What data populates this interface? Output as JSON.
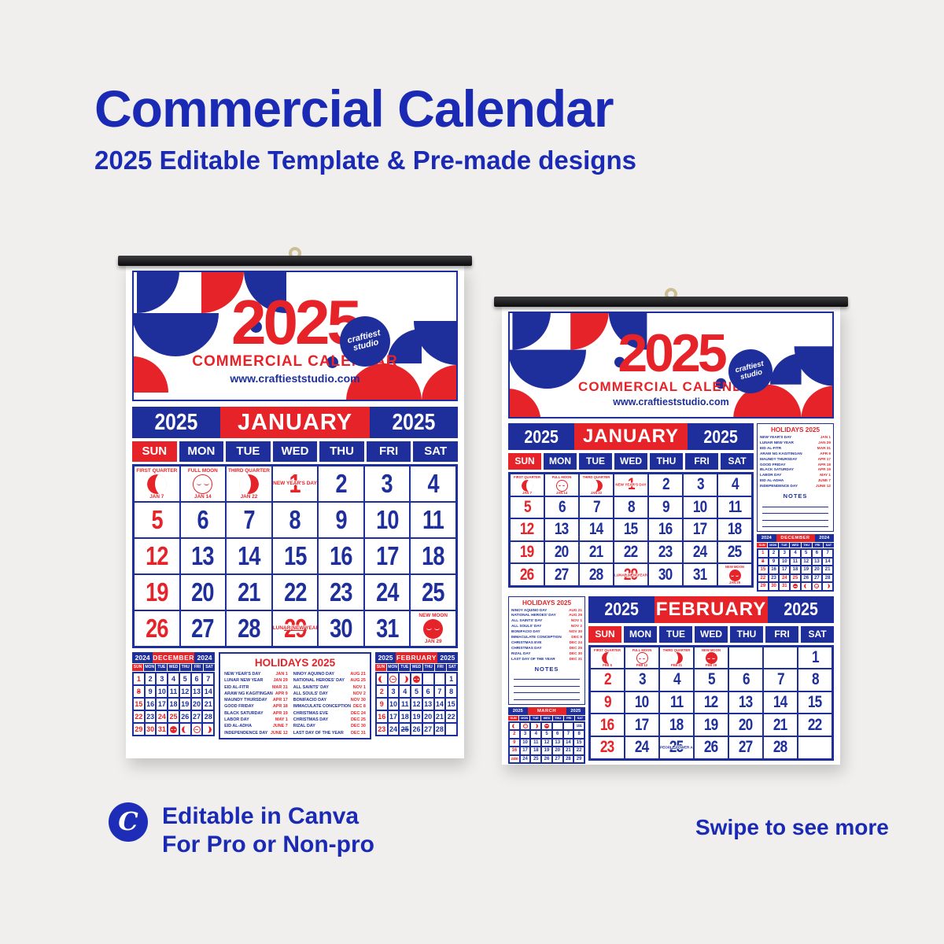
{
  "page": {
    "title": "Commercial Calendar",
    "subtitle": "2025 Editable Template & Pre-made designs",
    "swipe": "Swipe to see more",
    "canva_logo": "C",
    "canva_line1": "Editable in Canva",
    "canva_line2": "For Pro or Non-pro"
  },
  "colors": {
    "blue": "#1e2f9b",
    "red": "#e62329",
    "title_blue": "#1b2ab5",
    "bg": "#f0efed"
  },
  "poster_header": {
    "year": "2025",
    "title": "COMMERCIAL CALENDAR",
    "website": "www.craftieststudio.com",
    "badge1": "craftiest",
    "badge2": "studio"
  },
  "weekdays": [
    "SUN",
    "MON",
    "TUE",
    "WED",
    "THU",
    "FRI",
    "SAT"
  ],
  "months": {
    "jan": {
      "l": "2025",
      "m": "JANUARY",
      "r": "2025"
    },
    "feb": {
      "l": "2025",
      "m": "FEBRUARY",
      "r": "2025"
    }
  },
  "grids": {
    "january": [
      [
        {
          "m": "fq",
          "l": "FIRST QUARTER",
          "d": "JAN 7"
        },
        {
          "m": "fm",
          "l": "FULL MOON",
          "d": "JAN 14"
        },
        {
          "m": "tq",
          "l": "THIRD QUARTER",
          "d": "JAN 22"
        },
        {
          "n": "1",
          "c": "r",
          "band": "NEW YEAR'S DAY"
        },
        {
          "n": "2"
        },
        {
          "n": "3"
        },
        {
          "n": "4"
        }
      ],
      [
        {
          "n": "5",
          "c": "r"
        },
        {
          "n": "6"
        },
        {
          "n": "7"
        },
        {
          "n": "8"
        },
        {
          "n": "9"
        },
        {
          "n": "10"
        },
        {
          "n": "11"
        }
      ],
      [
        {
          "n": "12",
          "c": "r"
        },
        {
          "n": "13"
        },
        {
          "n": "14"
        },
        {
          "n": "15"
        },
        {
          "n": "16"
        },
        {
          "n": "17"
        },
        {
          "n": "18"
        }
      ],
      [
        {
          "n": "19",
          "c": "r"
        },
        {
          "n": "20"
        },
        {
          "n": "21"
        },
        {
          "n": "22"
        },
        {
          "n": "23"
        },
        {
          "n": "24"
        },
        {
          "n": "25"
        }
      ],
      [
        {
          "n": "26",
          "c": "r"
        },
        {
          "n": "27"
        },
        {
          "n": "28"
        },
        {
          "n": "29",
          "c": "r",
          "strike": 1,
          "band": "LUNAR NEW YEAR"
        },
        {
          "n": "30"
        },
        {
          "n": "31"
        },
        {
          "m": "nm",
          "l": "NEW MOON",
          "d": "JAN 29"
        }
      ]
    ],
    "february": [
      [
        {
          "m": "fq",
          "l": "FIRST QUARTER",
          "d": "FEB 5"
        },
        {
          "m": "fm",
          "l": "FULL MOON",
          "d": "FEB 12"
        },
        {
          "m": "tq",
          "l": "THIRD QUARTER",
          "d": "FEB 21"
        },
        {
          "m": "nm",
          "l": "NEW MOON",
          "d": "FEB 28"
        },
        {
          "e": 1
        },
        {
          "e": 1
        },
        {
          "n": "1"
        }
      ],
      [
        {
          "n": "2",
          "c": "r"
        },
        {
          "n": "3"
        },
        {
          "n": "4"
        },
        {
          "n": "5"
        },
        {
          "n": "6"
        },
        {
          "n": "7"
        },
        {
          "n": "8"
        }
      ],
      [
        {
          "n": "9",
          "c": "r"
        },
        {
          "n": "10"
        },
        {
          "n": "11"
        },
        {
          "n": "12"
        },
        {
          "n": "13"
        },
        {
          "n": "14"
        },
        {
          "n": "15"
        }
      ],
      [
        {
          "n": "16",
          "c": "r"
        },
        {
          "n": "17"
        },
        {
          "n": "18"
        },
        {
          "n": "19"
        },
        {
          "n": "20"
        },
        {
          "n": "21"
        },
        {
          "n": "22"
        }
      ],
      [
        {
          "n": "23",
          "c": "r"
        },
        {
          "n": "24"
        },
        {
          "n": "25",
          "strike": 1,
          "band": "PEOPLE POWER ANNIVERSARY",
          "bc": "b"
        },
        {
          "n": "26"
        },
        {
          "n": "27"
        },
        {
          "n": "28"
        },
        {
          "e": 1
        }
      ]
    ]
  },
  "minis": {
    "dec": {
      "l": "2024",
      "m": "DECEMBER",
      "r": "2024",
      "rows": [
        [
          {
            "n": "1",
            "c": "r"
          },
          {
            "n": "2"
          },
          {
            "n": "3"
          },
          {
            "n": "4"
          },
          {
            "n": "5"
          },
          {
            "n": "6"
          },
          {
            "n": "7"
          }
        ],
        [
          {
            "n": "8",
            "c": "r",
            "strike": 1
          },
          {
            "n": "9"
          },
          {
            "n": "10"
          },
          {
            "n": "11"
          },
          {
            "n": "12"
          },
          {
            "n": "13"
          },
          {
            "n": "14"
          }
        ],
        [
          {
            "n": "15",
            "c": "r"
          },
          {
            "n": "16"
          },
          {
            "n": "17"
          },
          {
            "n": "18"
          },
          {
            "n": "19"
          },
          {
            "n": "20"
          },
          {
            "n": "21"
          }
        ],
        [
          {
            "n": "22",
            "c": "r"
          },
          {
            "n": "23"
          },
          {
            "n": "24",
            "c": "r"
          },
          {
            "n": "25",
            "c": "r"
          },
          {
            "n": "26"
          },
          {
            "n": "27"
          },
          {
            "n": "28"
          }
        ],
        [
          {
            "n": "29",
            "c": "r"
          },
          {
            "n": "30",
            "c": "r"
          },
          {
            "n": "31",
            "c": "r"
          },
          {
            "m": "nm"
          },
          {
            "m": "fq"
          },
          {
            "m": "fm"
          },
          {
            "m": "tq"
          }
        ]
      ]
    },
    "feb": {
      "l": "2025",
      "m": "FEBRUARY",
      "r": "2025",
      "rows": [
        [
          {
            "m": "fq"
          },
          {
            "m": "fm"
          },
          {
            "m": "tq"
          },
          {
            "m": "nm"
          },
          {
            "e": 1
          },
          {
            "e": 1
          },
          {
            "n": "1"
          }
        ],
        [
          {
            "n": "2",
            "c": "r"
          },
          {
            "n": "3"
          },
          {
            "n": "4"
          },
          {
            "n": "5"
          },
          {
            "n": "6"
          },
          {
            "n": "7"
          },
          {
            "n": "8"
          }
        ],
        [
          {
            "n": "9",
            "c": "r"
          },
          {
            "n": "10"
          },
          {
            "n": "11"
          },
          {
            "n": "12"
          },
          {
            "n": "13"
          },
          {
            "n": "14"
          },
          {
            "n": "15"
          }
        ],
        [
          {
            "n": "16",
            "c": "r"
          },
          {
            "n": "17"
          },
          {
            "n": "18"
          },
          {
            "n": "19"
          },
          {
            "n": "20"
          },
          {
            "n": "21"
          },
          {
            "n": "22"
          }
        ],
        [
          {
            "n": "23",
            "c": "r"
          },
          {
            "n": "24"
          },
          {
            "n": "25",
            "strike": 1
          },
          {
            "n": "26"
          },
          {
            "n": "27"
          },
          {
            "n": "28"
          },
          {
            "e": 1
          }
        ]
      ]
    },
    "mar": {
      "l": "2025",
      "m": "MARCH",
      "r": "2025",
      "rows": [
        [
          {
            "m": "fq"
          },
          {
            "m": "fm"
          },
          {
            "m": "tq"
          },
          {
            "m": "nm"
          },
          {
            "e": 1
          },
          {
            "e": 1
          },
          {
            "n": "1/31"
          }
        ],
        [
          {
            "n": "2",
            "c": "r"
          },
          {
            "n": "3"
          },
          {
            "n": "4"
          },
          {
            "n": "5"
          },
          {
            "n": "6"
          },
          {
            "n": "7"
          },
          {
            "n": "8"
          }
        ],
        [
          {
            "n": "9",
            "c": "r"
          },
          {
            "n": "10"
          },
          {
            "n": "11"
          },
          {
            "n": "12"
          },
          {
            "n": "13"
          },
          {
            "n": "14"
          },
          {
            "n": "15"
          }
        ],
        [
          {
            "n": "16",
            "c": "r"
          },
          {
            "n": "17"
          },
          {
            "n": "18"
          },
          {
            "n": "19"
          },
          {
            "n": "20"
          },
          {
            "n": "21"
          },
          {
            "n": "22"
          }
        ],
        [
          {
            "n": "23/30",
            "c": "r"
          },
          {
            "n": "24"
          },
          {
            "n": "25"
          },
          {
            "n": "26"
          },
          {
            "n": "27"
          },
          {
            "n": "28"
          },
          {
            "n": "29"
          }
        ]
      ]
    }
  },
  "holidays": {
    "title": "HOLIDAYS 2025",
    "notes_label": "NOTES",
    "col1": [
      [
        "NEW YEAR'S DAY",
        "JAN 1"
      ],
      [
        "LUNAR NEW YEAR",
        "JAN 29"
      ],
      [
        "EID AL-FITR",
        "MAR 31"
      ],
      [
        "ARAW NG KAGITINGAN",
        "APR 9"
      ],
      [
        "MAUNDY THURSDAY",
        "APR 17"
      ],
      [
        "GOOD FRIDAY",
        "APR 18"
      ],
      [
        "BLACK SATURDAY",
        "APR 19"
      ],
      [
        "LABOR DAY",
        "MAY 1"
      ],
      [
        "EID AL-ADHA",
        "JUNE 7"
      ],
      [
        "INDEPENDENCE DAY",
        "JUNE 12"
      ]
    ],
    "col2": [
      [
        "NINOY AQUINO DAY",
        "AUG 21"
      ],
      [
        "NATIONAL HEROES' DAY",
        "AUG 25"
      ],
      [
        "ALL SAINTS' DAY",
        "NOV 1"
      ],
      [
        "ALL SOULS' DAY",
        "NOV 2"
      ],
      [
        "BONIFACIO DAY",
        "NOV 30"
      ],
      [
        "IMMACULATE CONCEPTION",
        "DEC 8"
      ],
      [
        "CHRISTMAS EVE",
        "DEC 24"
      ],
      [
        "CHRISTMAS DAY",
        "DEC 25"
      ],
      [
        "RIZAL DAY",
        "DEC 30"
      ],
      [
        "LAST DAY OF THE YEAR",
        "DEC 31"
      ]
    ]
  }
}
